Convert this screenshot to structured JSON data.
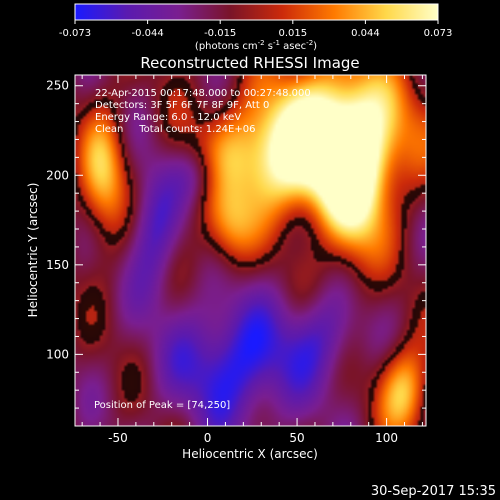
{
  "colorbar": {
    "ticks": [
      "-0.073",
      "-0.044",
      "-0.015",
      "0.015",
      "0.044",
      "0.073"
    ],
    "min": -0.073,
    "max": 0.073,
    "units_prefix": "(photons cm",
    "units_exp1": "-2",
    "units_mid1": " s",
    "units_exp2": "-1",
    "units_mid2": " asec",
    "units_exp3": "-2",
    "units_suffix": ")",
    "colors": [
      "#1a1aff",
      "#5a1ab0",
      "#7a1e90",
      "#7a1428",
      "#cc2a0a",
      "#ff7a00",
      "#ffd84a",
      "#ffffc8"
    ]
  },
  "image": {
    "title": "Reconstructed RHESSI Image",
    "info_lines": [
      "22-Apr-2015 00:17:48.000 to 00:27:48.000",
      "Detectors: 3F 5F 6F 7F 8F 9F, Att 0",
      "Energy Range: 6.0 - 12.0 keV",
      "Clean     Total counts: 1.24E+06"
    ],
    "peak_label": "Position of Peak = [74,250]",
    "footer_date": "30-Sep-2017 15:35"
  },
  "chart_data": {
    "type": "heatmap",
    "title": "Reconstructed RHESSI Image",
    "xlabel": "Heliocentric X (arcsec)",
    "ylabel": "Heliocentric Y (arcsec)",
    "xlim": [
      -74,
      122
    ],
    "ylim": [
      60,
      256
    ],
    "xticks": [
      -50,
      0,
      50,
      100
    ],
    "yticks": [
      100,
      150,
      200,
      250
    ],
    "zlim": [
      -0.073,
      0.073
    ],
    "peak": [
      74,
      250
    ],
    "hot_regions": [
      {
        "x": 75,
        "y": 225,
        "sx": 28,
        "sy": 28,
        "value": 0.073
      },
      {
        "x": 40,
        "y": 210,
        "sx": 30,
        "sy": 22,
        "value": 0.06
      },
      {
        "x": 82,
        "y": 188,
        "sx": 12,
        "sy": 30,
        "value": 0.055
      },
      {
        "x": -58,
        "y": 200,
        "sx": 9,
        "sy": 26,
        "value": 0.045
      },
      {
        "x": 12,
        "y": 170,
        "sx": 10,
        "sy": 16,
        "value": 0.035
      },
      {
        "x": 110,
        "y": 80,
        "sx": 10,
        "sy": 18,
        "value": 0.05
      }
    ],
    "cold_regions": [
      {
        "x": 15,
        "y": 95,
        "sx": 25,
        "sy": 25,
        "value": -0.073
      },
      {
        "x": -30,
        "y": 170,
        "sx": 10,
        "sy": 25,
        "value": -0.06
      },
      {
        "x": 65,
        "y": 110,
        "sx": 14,
        "sy": 18,
        "value": -0.05
      },
      {
        "x": -5,
        "y": 200,
        "sx": 10,
        "sy": 12,
        "value": -0.045
      }
    ],
    "background_value": -0.015
  }
}
